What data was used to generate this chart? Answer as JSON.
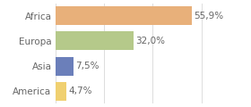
{
  "categories": [
    "Africa",
    "Europa",
    "Asia",
    "America"
  ],
  "values": [
    55.9,
    32.0,
    7.5,
    4.7
  ],
  "labels": [
    "55,9%",
    "32,0%",
    "7,5%",
    "4,7%"
  ],
  "bar_colors": [
    "#e8b07a",
    "#b5c98a",
    "#6b7fba",
    "#f0d070"
  ],
  "background_color": "#ffffff",
  "xlim": [
    0,
    68
  ],
  "bar_height": 0.75,
  "label_fontsize": 7.5,
  "tick_fontsize": 7.5,
  "grid_ticks": [
    0,
    20,
    40,
    60
  ],
  "grid_color": "#dddddd",
  "text_color": "#666666"
}
